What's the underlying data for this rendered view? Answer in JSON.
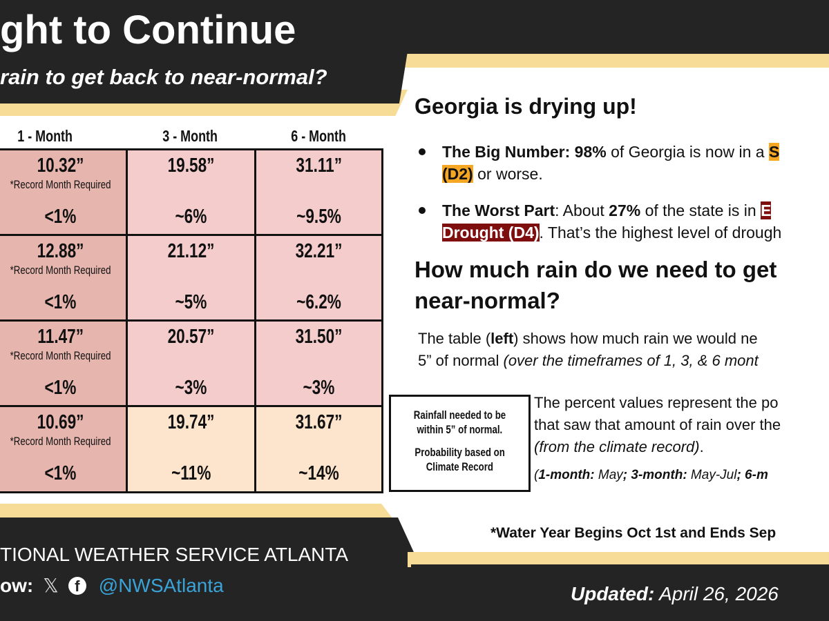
{
  "header": {
    "title_fragment": "ght to Continue",
    "subtitle_fragment": "rain to get back to near-normal?"
  },
  "table": {
    "columns": [
      "1 - Month",
      "3 - Month",
      "6 - Month"
    ],
    "rows": [
      {
        "cells": [
          {
            "amount": "10.32”",
            "note": "*Record Month Required",
            "pct": "<1%"
          },
          {
            "amount": "19.58”",
            "pct": "~6%"
          },
          {
            "amount": "31.11”",
            "pct": "~9.5%"
          }
        ]
      },
      {
        "cells": [
          {
            "amount": "12.88”",
            "note": "*Record Month Required",
            "pct": "<1%"
          },
          {
            "amount": "21.12”",
            "pct": "~5%"
          },
          {
            "amount": "32.21”",
            "pct": "~6.2%"
          }
        ]
      },
      {
        "cells": [
          {
            "amount": "11.47”",
            "note": "*Record Month Required",
            "pct": "<1%"
          },
          {
            "amount": "20.57”",
            "pct": "~3%"
          },
          {
            "amount": "31.50”",
            "pct": "~3%"
          }
        ]
      },
      {
        "cells": [
          {
            "amount": "10.69”",
            "note": "*Record Month Required",
            "pct": "<1%"
          },
          {
            "amount": "19.74”",
            "pct": "~11%"
          },
          {
            "amount": "31.67”",
            "pct": "~14%"
          }
        ]
      }
    ],
    "colors": {
      "record": "#e6b5ae",
      "pink": "#f4cccb",
      "peach": "#fde4cc"
    }
  },
  "panel": {
    "heading": "Georgia is drying up!",
    "bullet1": {
      "label": "The Big Number:",
      "value": "98%",
      "text": " of Georgia is now in a ",
      "hl_start": "S",
      "line2_hl": "(D2)",
      "line2_text": " or worse."
    },
    "bullet2": {
      "label": "The Worst Part",
      "colon": ": About ",
      "value": "27%",
      "text": " of the state is in ",
      "hl_start": "E",
      "line2_hl": "Drought (D4)",
      "line2_text": ". That’s the highest level of drough"
    },
    "heading2_line1": "How much rain do we need to get",
    "heading2_line2": "near-normal?",
    "para_a": "The table (",
    "para_left": "left",
    "para_b": ") shows how much rain we would ne",
    "para_line2": "5” of normal ",
    "para_line2_it": "(over the timeframes of 1, 3, & 6 mont",
    "legend_line1": "Rainfall needed to be",
    "legend_line2": "within 5” of normal.",
    "legend_line3": "Probability based on",
    "legend_line4": "Climate Record",
    "pct_line1": "The percent values represent the po",
    "pct_line2": "that saw that amount of rain over the",
    "pct_line3": "(from the climate record)",
    "pct_line3_end": ".",
    "periods": {
      "l1": "1-month:",
      "v1": " May",
      "l2": "; 3-month:",
      "v2": " May-Jul",
      "l3": "; 6-m"
    },
    "water_year": "*Water Year Begins Oct 1st and Ends Sep"
  },
  "footer": {
    "org": "TIONAL WEATHER SERVICE ATLANTA",
    "follow": "ow:",
    "handle": "@NWSAtlanta",
    "handle_color": "#3aa3d8",
    "icons": [
      "x-icon",
      "facebook-icon"
    ],
    "updated_label": "Updated:",
    "updated_date": " April 26, 2026"
  }
}
